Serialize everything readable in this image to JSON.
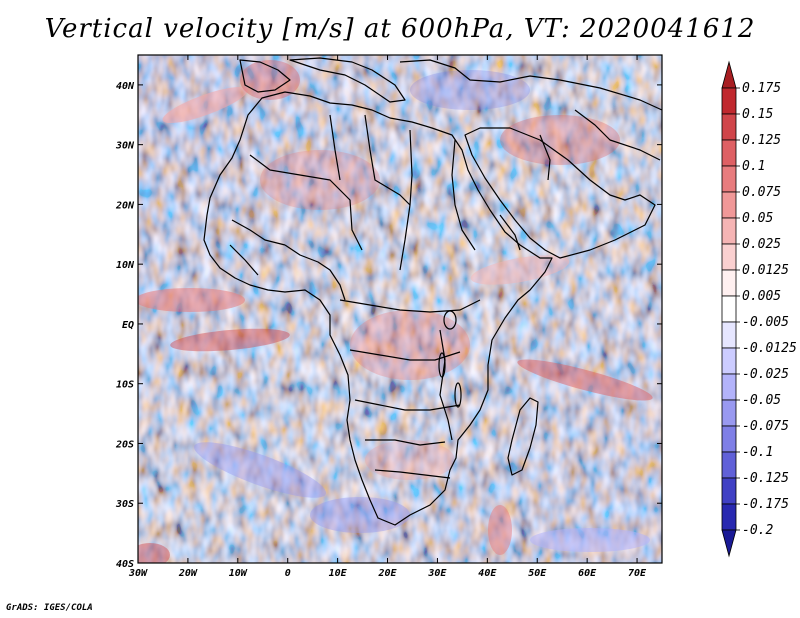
{
  "title": "Vertical velocity [m/s] at 600hPa, VT: 2020041612",
  "footer": "GrADS: IGES/COLA",
  "map": {
    "projection": "lat-lon",
    "lon_range": [
      -30,
      75
    ],
    "lat_range": [
      -40,
      45
    ],
    "lat_ticks": [
      {
        "value": 40,
        "label": "40N"
      },
      {
        "value": 30,
        "label": "30N"
      },
      {
        "value": 20,
        "label": "20N"
      },
      {
        "value": 10,
        "label": "10N"
      },
      {
        "value": 0,
        "label": "EQ"
      },
      {
        "value": -10,
        "label": "10S"
      },
      {
        "value": -20,
        "label": "20S"
      },
      {
        "value": -30,
        "label": "30S"
      },
      {
        "value": -40,
        "label": "40S"
      }
    ],
    "lon_ticks": [
      {
        "value": -30,
        "label": "30W"
      },
      {
        "value": -20,
        "label": "20W"
      },
      {
        "value": -10,
        "label": "10W"
      },
      {
        "value": 0,
        "label": "0"
      },
      {
        "value": 10,
        "label": "10E"
      },
      {
        "value": 20,
        "label": "20E"
      },
      {
        "value": 30,
        "label": "30E"
      },
      {
        "value": 40,
        "label": "40E"
      },
      {
        "value": 50,
        "label": "50E"
      },
      {
        "value": 60,
        "label": "60E"
      },
      {
        "value": 70,
        "label": "70E"
      }
    ]
  },
  "colorbar": {
    "labels": [
      "0.175",
      "0.15",
      "0.125",
      "0.1",
      "0.075",
      "0.05",
      "0.025",
      "0.0125",
      "0.005",
      "-0.005",
      "-0.0125",
      "-0.025",
      "-0.05",
      "-0.075",
      "-0.1",
      "-0.125",
      "-0.175",
      "-0.2"
    ],
    "colors": [
      "#a81e22",
      "#c0282e",
      "#d0454a",
      "#de6064",
      "#e87c7e",
      "#f09898",
      "#f5b4b4",
      "#fad0d0",
      "#fff0f0",
      "#ffffff",
      "#e6e6ff",
      "#ccccff",
      "#b3b3fa",
      "#9999f0",
      "#7f7fe6",
      "#6060d8",
      "#4040c4",
      "#2828b0",
      "#1a1a96"
    ]
  },
  "colors": {
    "positive": "#d0454a",
    "negative": "#7f7fe6",
    "land_border": "#000000"
  }
}
